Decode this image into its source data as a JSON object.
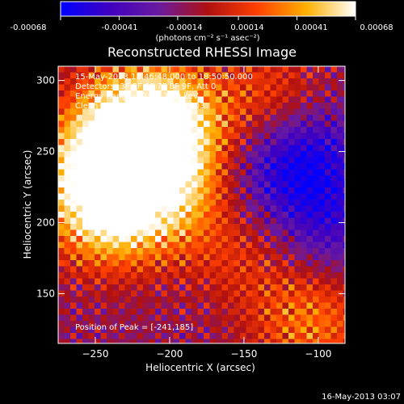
{
  "chart_data": {
    "type": "heatmap",
    "title": "Reconstructed RHESSI Image",
    "xlabel": "Heliocentric X (arcsec)",
    "ylabel": "Heliocentric Y (arcsec)",
    "xlim": [
      -275,
      -82
    ],
    "ylim": [
      115,
      310
    ],
    "xticks": [
      -250,
      -200,
      -150,
      -100
    ],
    "yticks": [
      150,
      200,
      250,
      300
    ],
    "colorbar": {
      "ticks": [
        "-0.00068",
        "-0.00041",
        "-0.00014",
        "0.00014",
        "0.00041",
        "0.00068"
      ],
      "range": [
        -0.00068,
        0.00068
      ],
      "unit_label": "(photons cm⁻² s⁻¹ asec⁻²)",
      "colors": [
        "#0000ff",
        "#4000c0",
        "#6a1aa0",
        "#b01010",
        "#ff4000",
        "#ffb000",
        "#ffffff"
      ]
    },
    "annotations": {
      "time_range": "15-May-2013 18:46:48.000 to 18:50:50.000",
      "detectors": "Detectors: 3F 5F 6F 7F 8F 9F, Att 0",
      "energy_range": "Energy Range: 12.0 - 25.0 keV",
      "clean_counts": "Clean     Total counts: 7.58E+03",
      "peak_position": "Position of Peak = [-241,185]"
    },
    "bright_regions": [
      {
        "x": -250,
        "y": 240,
        "level": 0.9
      },
      {
        "x": -225,
        "y": 275,
        "level": 0.85
      },
      {
        "x": -200,
        "y": 270,
        "level": 0.8
      },
      {
        "x": -245,
        "y": 205,
        "level": 0.75
      },
      {
        "x": -215,
        "y": 215,
        "level": 0.6
      },
      {
        "x": -185,
        "y": 230,
        "level": 0.55
      },
      {
        "x": -105,
        "y": 130,
        "level": 0.6
      },
      {
        "x": -130,
        "y": 285,
        "level": 0.5
      },
      {
        "x": -150,
        "y": 180,
        "level": 0.35
      }
    ],
    "dim_regions": [
      {
        "x": -110,
        "y": 250,
        "level": -0.7
      },
      {
        "x": -95,
        "y": 200,
        "level": -0.5
      },
      {
        "x": -150,
        "y": 230,
        "level": -0.35
      }
    ]
  },
  "footer": {
    "timestamp": "16-May-2013 03:07"
  }
}
